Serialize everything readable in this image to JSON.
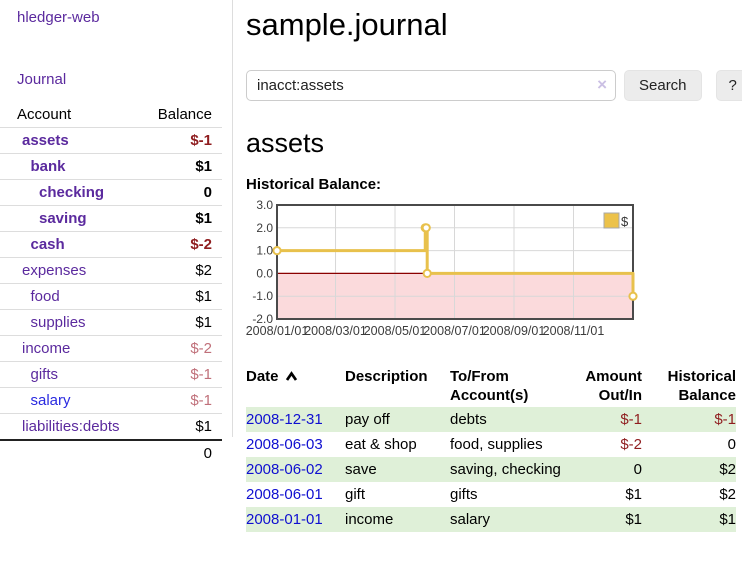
{
  "sidebar": {
    "brand": "hledger-web",
    "journal_link": "Journal",
    "accounts_table": {
      "account_header": "Account",
      "balance_header": "Balance",
      "rows": [
        {
          "account": "assets",
          "balance": "$-1",
          "indent": 1,
          "bold": true,
          "balance_class": "neg",
          "link_color": "purple"
        },
        {
          "account": "bank",
          "balance": "$1",
          "indent": 2,
          "bold": true,
          "balance_class": "pos",
          "link_color": "purple"
        },
        {
          "account": "checking",
          "balance": "0",
          "indent": 3,
          "bold": true,
          "balance_class": "pos",
          "link_color": "purple"
        },
        {
          "account": "saving",
          "balance": "$1",
          "indent": 3,
          "bold": true,
          "balance_class": "pos",
          "link_color": "purple"
        },
        {
          "account": "cash",
          "balance": "$-2",
          "indent": 2,
          "bold": true,
          "balance_class": "neg",
          "link_color": "purple"
        },
        {
          "account": "expenses",
          "balance": "$2",
          "indent": 1,
          "bold": false,
          "balance_class": "pos",
          "link_color": "purple"
        },
        {
          "account": "food",
          "balance": "$1",
          "indent": 2,
          "bold": false,
          "balance_class": "pos",
          "link_color": "purple"
        },
        {
          "account": "supplies",
          "balance": "$1",
          "indent": 2,
          "bold": false,
          "balance_class": "pos",
          "link_color": "purple"
        },
        {
          "account": "income",
          "balance": "$-2",
          "indent": 1,
          "bold": false,
          "balance_class": "negsoft",
          "link_color": "purple"
        },
        {
          "account": "gifts",
          "balance": "$-1",
          "indent": 2,
          "bold": false,
          "balance_class": "negsoft",
          "link_color": "purple"
        },
        {
          "account": "salary",
          "balance": "$-1",
          "indent": 2,
          "bold": false,
          "balance_class": "negsoft",
          "link_color": "blue"
        },
        {
          "account": "liabilities:debts",
          "balance": "$1",
          "indent": 1,
          "bold": false,
          "balance_class": "pos",
          "link_color": "purple"
        }
      ],
      "total": "0"
    }
  },
  "header": {
    "title": "sample.journal"
  },
  "search": {
    "value": "inacct:assets",
    "clear_icon": "×",
    "search_label": "Search",
    "help_label": "?"
  },
  "account_page": {
    "title": "assets",
    "chart_label": "Historical Balance:"
  },
  "chart_data": {
    "type": "line",
    "title": "Historical Balance",
    "interpolation": "step-after",
    "legend": [
      {
        "label": "$",
        "color": "#ecc24a"
      }
    ],
    "xlim": [
      0,
      365
    ],
    "ylim": [
      -2,
      3
    ],
    "y_ticks": [
      {
        "v": 3,
        "label": "3.0"
      },
      {
        "v": 2,
        "label": "2.0"
      },
      {
        "v": 1,
        "label": "1.0"
      },
      {
        "v": 0,
        "label": "0.0"
      },
      {
        "v": -1,
        "label": "-1.0"
      },
      {
        "v": -2,
        "label": "-2.0"
      }
    ],
    "x_ticks": [
      {
        "x": 0,
        "label": "2008/01/01"
      },
      {
        "x": 60,
        "label": "2008/03/01"
      },
      {
        "x": 121,
        "label": "2008/05/01"
      },
      {
        "x": 182,
        "label": "2008/07/01"
      },
      {
        "x": 243,
        "label": "2008/09/01"
      },
      {
        "x": 304,
        "label": "2008/11/01"
      }
    ],
    "series": [
      {
        "name": "$",
        "color": "#e8c14c",
        "points": [
          {
            "x": 0,
            "y": 1,
            "date": "2008-01-01"
          },
          {
            "x": 152,
            "y": 2,
            "date": "2008-06-01"
          },
          {
            "x": 153,
            "y": 2,
            "date": "2008-06-02"
          },
          {
            "x": 154,
            "y": 0,
            "date": "2008-06-03"
          },
          {
            "x": 365,
            "y": -1,
            "date": "2008-12-31"
          }
        ]
      }
    ],
    "colors": {
      "grid": "#d8d8d8",
      "border": "#4a4a4a",
      "zero_line": "#8b0000",
      "negative_region": "#fbdadc",
      "axis_text": "#3c3c3c",
      "marker_fill": "#ffffff"
    }
  },
  "register_table": {
    "headers": {
      "date": "Date",
      "description": "Description",
      "accounts": "To/From Account(s)",
      "amount": "Amount Out/In",
      "balance": "Historical Balance"
    },
    "rows": [
      {
        "date": "2008-12-31",
        "description": "pay off",
        "accounts": "debts",
        "amount": "$-1",
        "amount_class": "neg",
        "balance": "$-1",
        "balance_class": "neg",
        "shaded": true
      },
      {
        "date": "2008-06-03",
        "description": "eat & shop",
        "accounts": "food, supplies",
        "amount": "$-2",
        "amount_class": "neg",
        "balance": "0",
        "balance_class": "pos",
        "shaded": false
      },
      {
        "date": "2008-06-02",
        "description": "save",
        "accounts": "saving, checking",
        "amount": "0",
        "amount_class": "pos",
        "balance": "$2",
        "balance_class": "pos",
        "shaded": true
      },
      {
        "date": "2008-06-01",
        "description": "gift",
        "accounts": "gifts",
        "amount": "$1",
        "amount_class": "pos",
        "balance": "$2",
        "balance_class": "pos",
        "shaded": false
      },
      {
        "date": "2008-01-01",
        "description": "income",
        "accounts": "salary",
        "amount": "$1",
        "amount_class": "pos",
        "balance": "$1",
        "balance_class": "pos",
        "shaded": true
      }
    ]
  }
}
